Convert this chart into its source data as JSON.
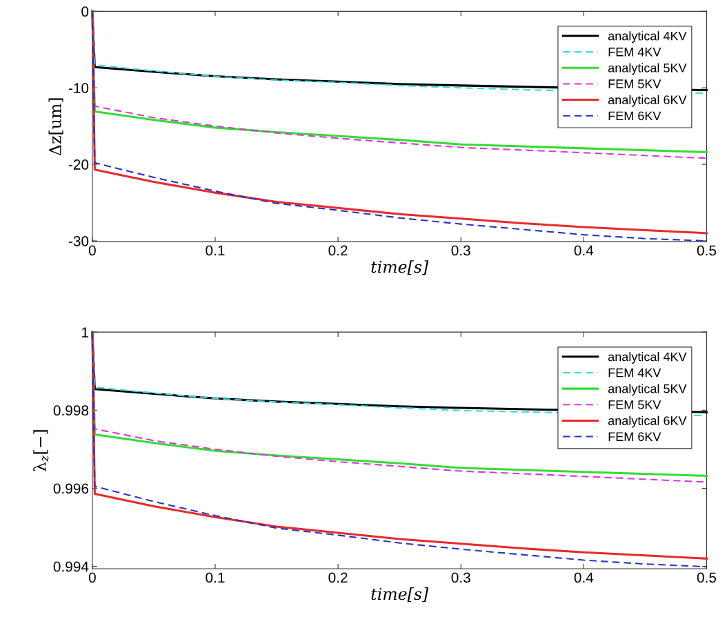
{
  "chart_data": [
    {
      "type": "line",
      "xlabel": "time[s]",
      "ylabel": "Δz[um]",
      "xlim": [
        0,
        0.5
      ],
      "xticks": [
        0,
        0.1,
        0.2,
        0.3,
        0.4,
        0.5
      ],
      "ylim": [
        -30.1,
        0
      ],
      "yticks": [
        -30,
        -20,
        -10,
        0
      ],
      "legend": "top right",
      "grid": false,
      "series": [
        {
          "name": "analytical 4KV",
          "color": "#000000",
          "line_style": "solid",
          "x": [
            0,
            0.002,
            0.05,
            0.1,
            0.15,
            0.2,
            0.25,
            0.3,
            0.36,
            0.5
          ],
          "values": [
            0,
            -7.3,
            -7.9,
            -8.5,
            -8.9,
            -9.2,
            -9.5,
            -9.7,
            -9.9,
            -10.3
          ]
        },
        {
          "name": "FEM 4KV",
          "color": "#33dddd",
          "line_style": "dashed",
          "x": [
            0,
            0.002,
            0.05,
            0.1,
            0.15,
            0.2,
            0.25,
            0.3,
            0.36,
            0.5
          ],
          "values": [
            0,
            -7.0,
            -7.8,
            -8.5,
            -9.0,
            -9.3,
            -9.7,
            -10.0,
            -10.3,
            -10.7
          ]
        },
        {
          "name": "analytical 5KV",
          "color": "#33dd33",
          "line_style": "solid",
          "x": [
            0,
            0.002,
            0.05,
            0.1,
            0.15,
            0.2,
            0.25,
            0.3,
            0.36,
            0.5
          ],
          "values": [
            0,
            -13.1,
            -14.2,
            -15.2,
            -15.8,
            -16.3,
            -16.8,
            -17.4,
            -17.7,
            -18.4
          ]
        },
        {
          "name": "FEM 5KV",
          "color": "#dd33dd",
          "line_style": "dashed",
          "x": [
            0,
            0.002,
            0.05,
            0.1,
            0.15,
            0.2,
            0.25,
            0.3,
            0.36,
            0.5
          ],
          "values": [
            0,
            -12.4,
            -13.9,
            -15.0,
            -15.9,
            -16.6,
            -17.2,
            -17.8,
            -18.2,
            -19.2
          ]
        },
        {
          "name": "analytical 6KV",
          "color": "#e82a2a",
          "line_style": "solid",
          "x": [
            0,
            0.002,
            0.05,
            0.1,
            0.15,
            0.2,
            0.25,
            0.3,
            0.35,
            0.4,
            0.45,
            0.5
          ],
          "values": [
            0,
            -20.7,
            -22.3,
            -23.7,
            -24.9,
            -25.7,
            -26.5,
            -27.1,
            -27.7,
            -28.2,
            -28.6,
            -29.0
          ]
        },
        {
          "name": "FEM 6KV",
          "color": "#2233cc",
          "line_style": "dashed",
          "x": [
            0,
            0.002,
            0.05,
            0.1,
            0.15,
            0.2,
            0.25,
            0.3,
            0.35,
            0.4,
            0.45,
            0.5
          ],
          "values": [
            0,
            -19.8,
            -21.7,
            -23.5,
            -25.1,
            -26.0,
            -27.0,
            -27.8,
            -28.5,
            -29.2,
            -29.7,
            -30.0
          ]
        }
      ]
    },
    {
      "type": "line",
      "xlabel": "time[s]",
      "ylabel": "λ$_{z}$[−]",
      "xlim": [
        0,
        0.5
      ],
      "xticks": [
        0,
        0.1,
        0.2,
        0.3,
        0.4,
        0.5
      ],
      "ylim": [
        0.99394,
        1
      ],
      "yticks": [
        0.994,
        0.996,
        0.998,
        1
      ],
      "legend": "top right",
      "grid": false,
      "series": [
        {
          "name": "analytical 4KV",
          "color": "#000000",
          "line_style": "solid",
          "x": [
            0,
            0.002,
            0.05,
            0.1,
            0.15,
            0.2,
            0.25,
            0.3,
            0.36,
            0.5
          ],
          "values": [
            1,
            0.99854,
            0.99842,
            0.9983,
            0.99822,
            0.99816,
            0.9981,
            0.99806,
            0.99802,
            0.99795
          ]
        },
        {
          "name": "FEM 4KV",
          "color": "#33dddd",
          "line_style": "dashed",
          "x": [
            0,
            0.002,
            0.05,
            0.1,
            0.15,
            0.2,
            0.25,
            0.3,
            0.36,
            0.5
          ],
          "values": [
            1,
            0.99859,
            0.99844,
            0.9983,
            0.99821,
            0.99814,
            0.99806,
            0.99799,
            0.99795,
            0.99786
          ]
        },
        {
          "name": "analytical 5KV",
          "color": "#33dd33",
          "line_style": "solid",
          "x": [
            0,
            0.002,
            0.05,
            0.1,
            0.15,
            0.2,
            0.25,
            0.3,
            0.36,
            0.5
          ],
          "values": [
            1,
            0.99738,
            0.99716,
            0.99696,
            0.99684,
            0.99674,
            0.99664,
            0.99652,
            0.99646,
            0.99632
          ]
        },
        {
          "name": "FEM 5KV",
          "color": "#dd33dd",
          "line_style": "dashed",
          "x": [
            0,
            0.002,
            0.05,
            0.1,
            0.15,
            0.2,
            0.25,
            0.3,
            0.36,
            0.5
          ],
          "values": [
            1,
            0.99752,
            0.99722,
            0.997,
            0.99682,
            0.99668,
            0.99656,
            0.99644,
            0.99636,
            0.99616
          ]
        },
        {
          "name": "analytical 6KV",
          "color": "#e82a2a",
          "line_style": "solid",
          "x": [
            0,
            0.002,
            0.05,
            0.1,
            0.15,
            0.2,
            0.25,
            0.3,
            0.35,
            0.4,
            0.45,
            0.5
          ],
          "values": [
            1,
            0.99586,
            0.99554,
            0.99526,
            0.99502,
            0.99486,
            0.9947,
            0.99458,
            0.99446,
            0.99436,
            0.99428,
            0.9942
          ]
        },
        {
          "name": "FEM 6KV",
          "color": "#2233cc",
          "line_style": "dashed",
          "x": [
            0,
            0.002,
            0.05,
            0.1,
            0.15,
            0.2,
            0.25,
            0.3,
            0.35,
            0.4,
            0.45,
            0.5
          ],
          "values": [
            1,
            0.99605,
            0.99566,
            0.9953,
            0.99498,
            0.9948,
            0.9946,
            0.99444,
            0.9943,
            0.99416,
            0.99406,
            0.99399
          ]
        }
      ]
    }
  ]
}
